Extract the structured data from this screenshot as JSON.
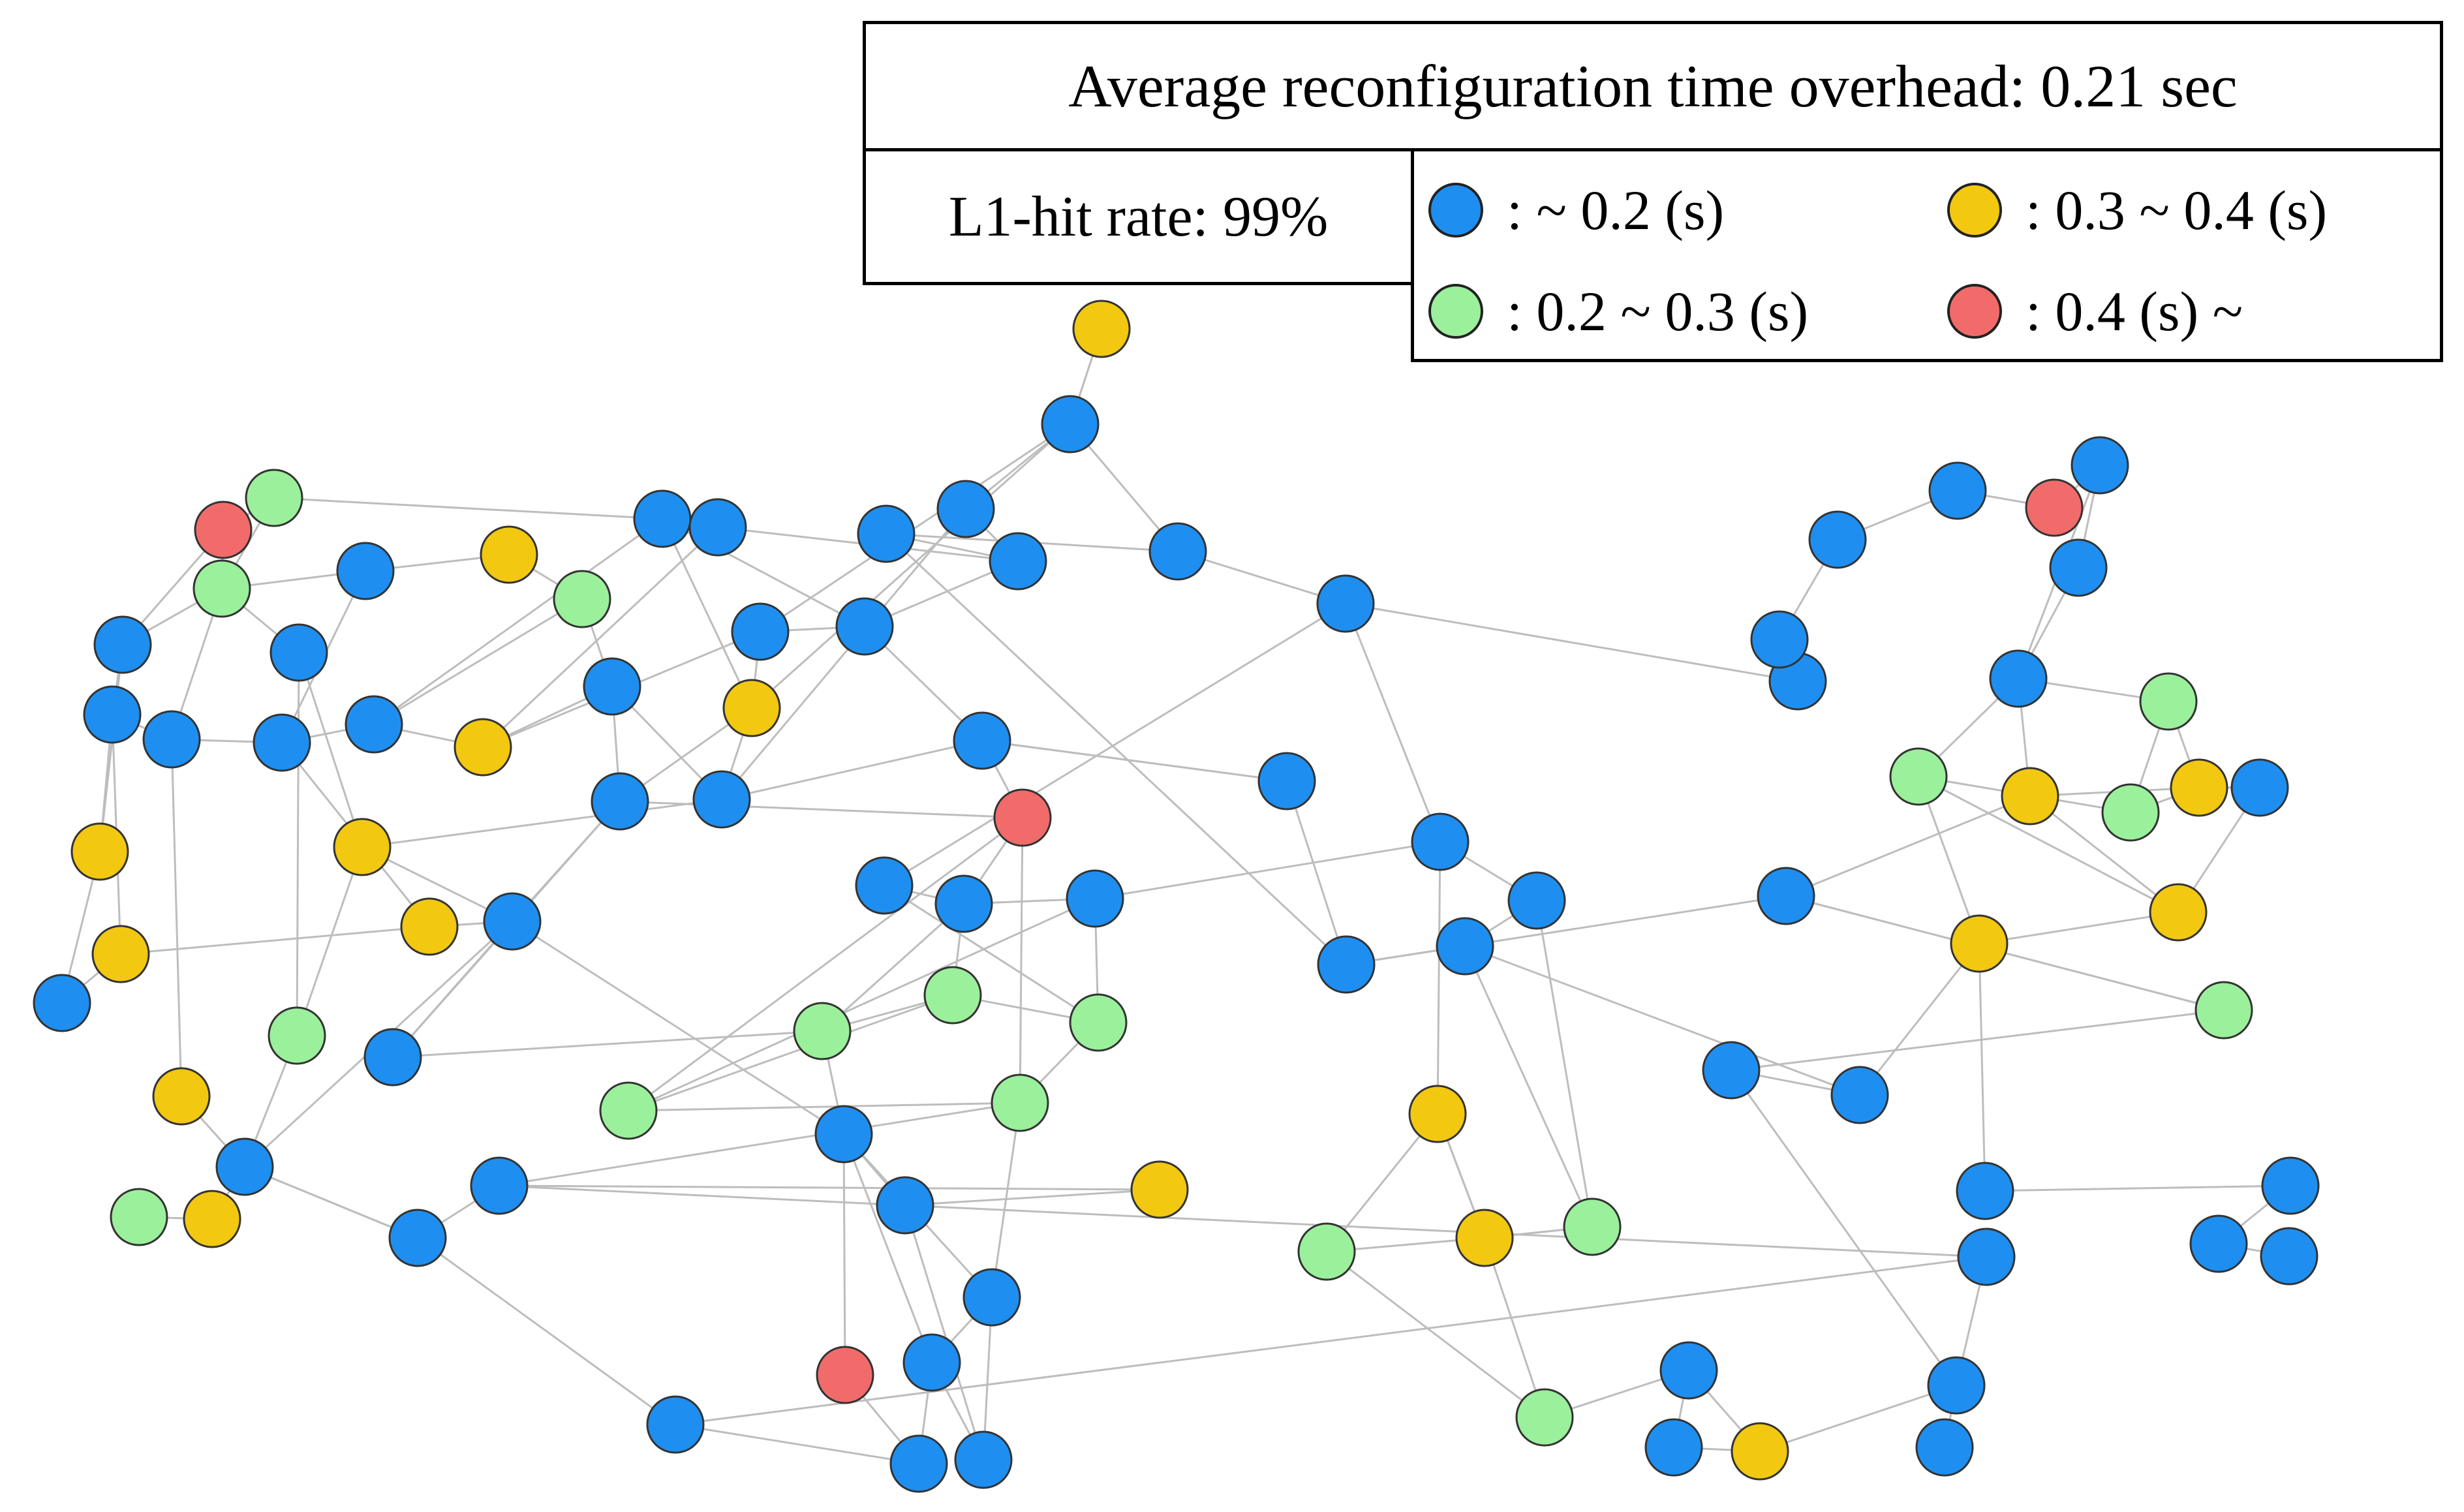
{
  "title": "Average reconfiguration time overhead: 0.21 sec",
  "hit_rate_label": "L1-hit rate: 99%",
  "legend": [
    {
      "label": ":   ~ 0.2 (s)",
      "color": "#1E8FF0"
    },
    {
      "label": ": 0.3  ~ 0.4 (s)",
      "color": "#F2C811"
    },
    {
      "label": ": 0.2 ~ 0.3 (s)",
      "color": "#9BF09B"
    },
    {
      "label": ": 0.4 (s) ~",
      "color": "#F26B6B"
    }
  ],
  "colors": {
    "blue": "#1E8FF0",
    "yellow": "#F2C811",
    "green": "#9BF09B",
    "red": "#F26B6B",
    "edge": "#bdbdbd",
    "node_stroke": "#333333"
  }
}
